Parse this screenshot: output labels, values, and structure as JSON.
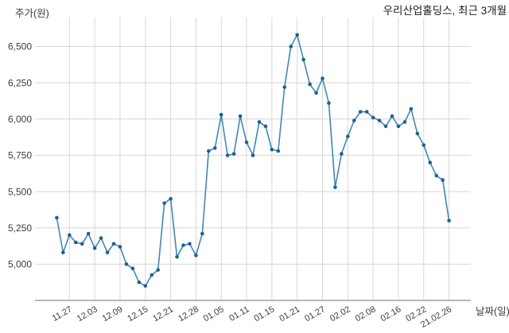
{
  "title": "우리산업홀딩스, 최근 3개월",
  "chart_data": {
    "type": "line",
    "title": "우리산업홀딩스, 최근 3개월",
    "ylabel": "주가(원)",
    "xlabel": "날짜(일)",
    "grid": true,
    "legend": null,
    "ylim": [
      4750,
      6700
    ],
    "y_ticks": [
      5000,
      5250,
      5500,
      5750,
      6000,
      6250,
      6500
    ],
    "y_tick_labels": [
      "5,000",
      "5,250",
      "5,500",
      "5,750",
      "6,000",
      "6,250",
      "6,500"
    ],
    "x_tick_labels": [
      "11.27",
      "12.03",
      "12.09",
      "12.15",
      "12.21",
      "12.28",
      "01.05",
      "01.11",
      "01.15",
      "01.21",
      "01.27",
      "02.02",
      "02.08",
      "02.16",
      "02.22",
      "21.02.26"
    ],
    "x_tick_indices": [
      2,
      6,
      10,
      14,
      18,
      22,
      26,
      30,
      34,
      38,
      42,
      46,
      50,
      54,
      58,
      62
    ],
    "series": [
      {
        "name": "주가",
        "values": [
          5320,
          5080,
          5200,
          5150,
          5140,
          5210,
          5110,
          5180,
          5080,
          5140,
          5120,
          5000,
          4970,
          4875,
          4850,
          4925,
          4960,
          5420,
          5450,
          5050,
          5130,
          5140,
          5060,
          5210,
          5780,
          5800,
          6030,
          5750,
          5760,
          6020,
          5840,
          5750,
          5980,
          5950,
          5790,
          5780,
          6220,
          6500,
          6580,
          6410,
          6240,
          6180,
          6280,
          6110,
          5530,
          5760,
          5880,
          5990,
          6050,
          6050,
          6010,
          5990,
          5950,
          6020,
          5950,
          5980,
          6070,
          5900,
          5820,
          5700,
          5610,
          5580,
          5300
        ]
      }
    ],
    "colors": {
      "line": "#4187b5",
      "marker": "#1f618d",
      "grid": "#d7d7d7",
      "axis_line": "#8c8c8c",
      "tick_text": "#3c3c3c",
      "title_text": "#1a1a1a",
      "background": "#ffffff"
    }
  }
}
